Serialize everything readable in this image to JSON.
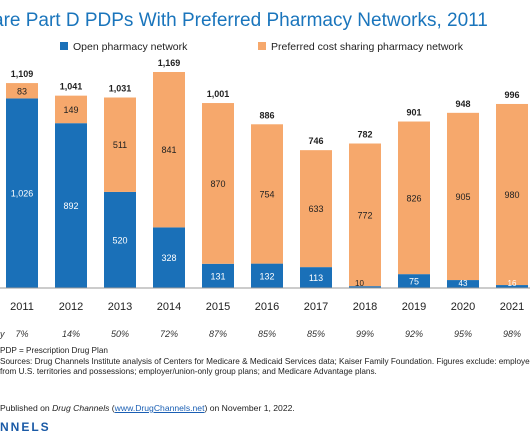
{
  "title": "are Part D PDPs With Preferred Pharmacy Networks, 2011",
  "chart_data": {
    "type": "bar",
    "stacked": true,
    "categories": [
      "2011",
      "2012",
      "2013",
      "2014",
      "2015",
      "2016",
      "2017",
      "2018",
      "2019",
      "2020",
      "2021"
    ],
    "series": [
      {
        "name": "Open pharmacy network",
        "color": "#1a70b8",
        "values": [
          1026,
          892,
          520,
          328,
          131,
          132,
          113,
          10,
          75,
          43,
          16
        ],
        "labels": [
          "1,026",
          "892",
          "520",
          "328",
          "131",
          "132",
          "113",
          "10",
          "75",
          "43",
          "16"
        ]
      },
      {
        "name": "Preferred cost sharing pharmacy network",
        "color": "#f6a86c",
        "values": [
          83,
          149,
          511,
          841,
          870,
          754,
          633,
          772,
          826,
          905,
          980
        ],
        "labels": [
          "83",
          "149",
          "511",
          "841",
          "870",
          "754",
          "633",
          "772",
          "826",
          "905",
          "980"
        ]
      }
    ],
    "totals": [
      "1,109",
      "1,041",
      "1,031",
      "1,169",
      "1,001",
      "886",
      "746",
      "782",
      "901",
      "948",
      "996"
    ],
    "share_row": {
      "label": "y",
      "values": [
        "7%",
        "14%",
        "50%",
        "72%",
        "87%",
        "85%",
        "85%",
        "99%",
        "92%",
        "95%",
        "98%"
      ]
    },
    "ylim": [
      0,
      1200
    ],
    "legend_position": "top",
    "grid": false
  },
  "footnotes": [
    "PDP = Prescription Drug Plan",
    "Sources: Drug Channels Institute analysis of Centers for Medicare & Medicaid Services data; Kaiser Family Foundation. Figures exclude: employer-",
    "from U.S. territories and possessions; employer/union-only group plans; and Medicare Advantage plans."
  ],
  "published": {
    "prefix": "Published on ",
    "outlet": "Drug Channels",
    "open": " (",
    "link": "www.DrugChannels.net",
    "suffix": ") on November 1, 2022."
  },
  "brand": "NNELS",
  "colors": {
    "title": "#1a75bc",
    "open": "#1a70b8",
    "preferred": "#f6a86c"
  }
}
